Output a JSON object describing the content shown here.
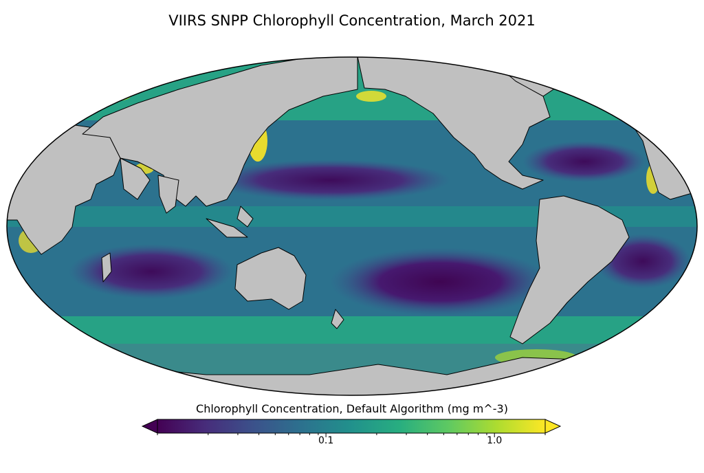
{
  "title": "VIIRS SNPP Chlorophyll Concentration, March 2021",
  "projection": "mollweide",
  "colors": {
    "land": "#c0c0c0",
    "coast": "#000000",
    "colormap": [
      "#440154",
      "#472d7b",
      "#3b528b",
      "#2c728e",
      "#21918c",
      "#28ae80",
      "#5ec962",
      "#addc30",
      "#fde725"
    ]
  },
  "colorbar": {
    "label": "Chlorophyll Concentration, Default Algorithm (mg m^-3)",
    "scale": "log",
    "range": [
      0.01,
      2.0
    ],
    "extend": "both",
    "ticks": [
      {
        "value": 0.1,
        "label": "0.1"
      },
      {
        "value": 1.0,
        "label": "1.0"
      }
    ]
  }
}
